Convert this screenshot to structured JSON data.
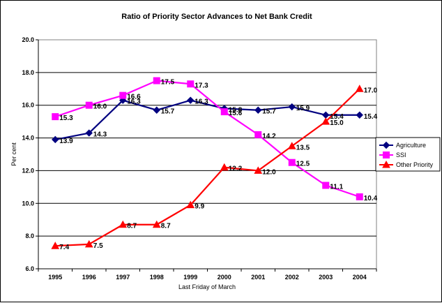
{
  "chart_data": {
    "type": "line",
    "title": "Ratio of Priority Sector Advances to Net Bank Credit",
    "xlabel": "Last Friday of March",
    "ylabel": "Per cent",
    "categories": [
      "1995",
      "1996",
      "1997",
      "1998",
      "1999",
      "2000",
      "2001",
      "2002",
      "2003",
      "2004"
    ],
    "ylim": [
      6.0,
      20.0
    ],
    "yticks": [
      "6.0",
      "8.0",
      "10.0",
      "12.0",
      "14.0",
      "16.0",
      "18.0",
      "20.0"
    ],
    "grid": true,
    "legend_position": "right",
    "series": [
      {
        "name": "Agriculture",
        "color": "#000080",
        "marker": "diamond",
        "values": [
          13.9,
          14.3,
          16.3,
          15.7,
          16.3,
          15.8,
          15.7,
          15.9,
          15.4,
          15.4
        ],
        "labels": [
          "13.9",
          "14.3",
          "16.3",
          "15.7",
          "16.3",
          "15.8",
          "15.7",
          "15.9",
          "15.4",
          "15.4"
        ]
      },
      {
        "name": "SSI",
        "color": "#FF00FF",
        "marker": "square",
        "values": [
          15.3,
          16.0,
          16.6,
          17.5,
          17.3,
          15.6,
          14.2,
          12.5,
          11.1,
          10.4
        ],
        "labels": [
          "15.3",
          "16.0",
          "16.6",
          "17.5",
          "17.3",
          "15.6",
          "14.2",
          "12.5",
          "11.1",
          "10.4"
        ]
      },
      {
        "name": "Other Priority",
        "color": "#FF0000",
        "marker": "triangle",
        "values": [
          7.4,
          7.5,
          8.7,
          8.7,
          9.9,
          12.2,
          12.0,
          13.5,
          15.0,
          17.0
        ],
        "labels": [
          "7.4",
          "7.5",
          "8.7",
          "8.7",
          "9.9",
          "12.2",
          "12.0",
          "13.5",
          "15.0",
          "17.0"
        ]
      }
    ]
  }
}
